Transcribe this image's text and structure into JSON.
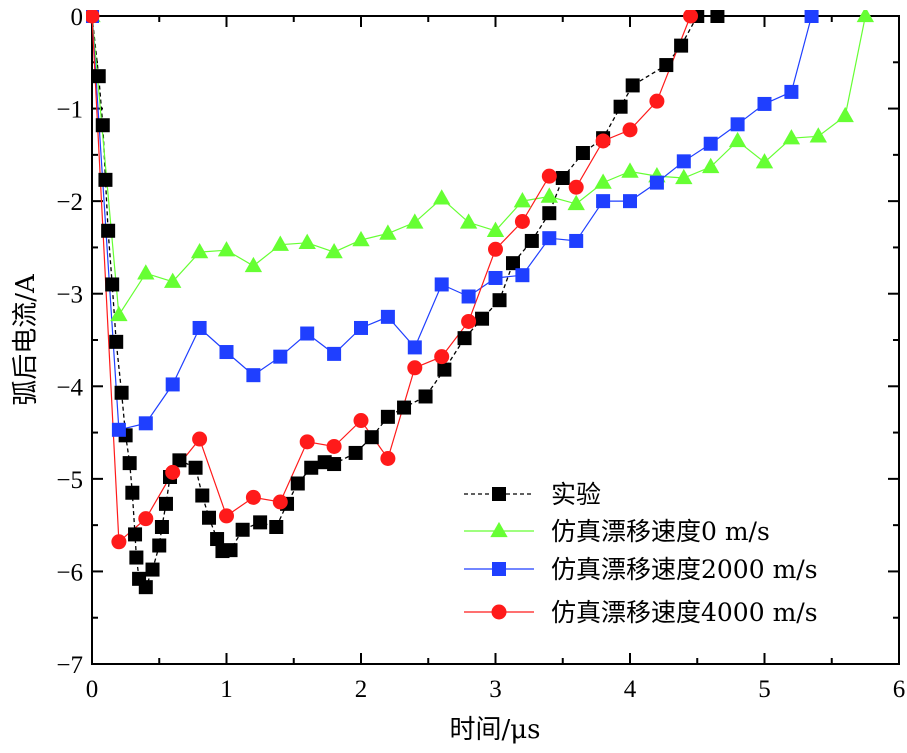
{
  "chart_data": {
    "type": "line",
    "xlabel": "时间/μs",
    "ylabel": "弧后电流/A",
    "xlim": [
      0,
      6
    ],
    "ylim": [
      -7,
      0
    ],
    "x_ticks": [
      "0",
      "1",
      "2",
      "3",
      "4",
      "5",
      "6"
    ],
    "y_ticks": [
      "0",
      "−1",
      "−2",
      "−3",
      "−4",
      "−5",
      "−6",
      "−7"
    ],
    "grid": false,
    "legend_position": "bottom-right",
    "series": [
      {
        "name": "实验",
        "color": "#000000",
        "line_style": "dashed",
        "marker": "square",
        "x": [
          0.0,
          0.05,
          0.08,
          0.1,
          0.12,
          0.15,
          0.18,
          0.22,
          0.25,
          0.28,
          0.3,
          0.32,
          0.33,
          0.35,
          0.4,
          0.45,
          0.5,
          0.52,
          0.55,
          0.58,
          0.65,
          0.77,
          0.82,
          0.87,
          0.93,
          0.97,
          1.03,
          1.12,
          1.25,
          1.37,
          1.45,
          1.53,
          1.63,
          1.73,
          1.8,
          1.96,
          2.08,
          2.2,
          2.32,
          2.48,
          2.62,
          2.77,
          2.9,
          3.03,
          3.13,
          3.27,
          3.4,
          3.5,
          3.65,
          3.8,
          3.93,
          4.02,
          4.27,
          4.38,
          4.5,
          4.65
        ],
        "y": [
          0,
          -0.65,
          -1.18,
          -1.77,
          -2.32,
          -2.9,
          -3.52,
          -4.07,
          -4.53,
          -4.83,
          -5.15,
          -5.6,
          -5.85,
          -6.08,
          -6.17,
          -5.98,
          -5.72,
          -5.52,
          -5.27,
          -4.98,
          -4.8,
          -4.88,
          -5.18,
          -5.42,
          -5.65,
          -5.78,
          -5.77,
          -5.55,
          -5.47,
          -5.52,
          -5.27,
          -5.05,
          -4.88,
          -4.82,
          -4.84,
          -4.72,
          -4.55,
          -4.33,
          -4.23,
          -4.11,
          -3.82,
          -3.48,
          -3.27,
          -3.07,
          -2.67,
          -2.43,
          -2.13,
          -1.75,
          -1.48,
          -1.32,
          -0.98,
          -0.75,
          -0.53,
          -0.32,
          -0.0,
          -0.0
        ]
      },
      {
        "name": "仿真漂移速度0 m/s",
        "color": "#66ff33",
        "line_style": "solid",
        "marker": "triangle",
        "x": [
          0.0,
          0.2,
          0.4,
          0.6,
          0.8,
          1.0,
          1.2,
          1.4,
          1.6,
          1.8,
          2.0,
          2.2,
          2.4,
          2.6,
          2.8,
          3.0,
          3.2,
          3.4,
          3.6,
          3.8,
          4.0,
          4.2,
          4.4,
          4.6,
          4.8,
          5.0,
          5.2,
          5.4,
          5.6,
          5.75
        ],
        "y": [
          0,
          -3.23,
          -2.78,
          -2.87,
          -2.55,
          -2.53,
          -2.7,
          -2.47,
          -2.45,
          -2.55,
          -2.42,
          -2.35,
          -2.23,
          -1.97,
          -2.23,
          -2.32,
          -2.0,
          -1.95,
          -2.03,
          -1.8,
          -1.68,
          -1.73,
          -1.75,
          -1.63,
          -1.35,
          -1.58,
          -1.32,
          -1.3,
          -1.08,
          0
        ]
      },
      {
        "name": "仿真漂移速度2000 m/s",
        "color": "#1f3fff",
        "line_style": "solid",
        "marker": "square",
        "x": [
          0.0,
          0.2,
          0.4,
          0.6,
          0.8,
          1.0,
          1.2,
          1.4,
          1.6,
          1.8,
          2.0,
          2.2,
          2.4,
          2.6,
          2.8,
          3.0,
          3.2,
          3.4,
          3.6,
          3.8,
          4.0,
          4.2,
          4.4,
          4.6,
          4.8,
          5.0,
          5.2,
          5.35
        ],
        "y": [
          0,
          -4.47,
          -4.4,
          -3.98,
          -3.37,
          -3.63,
          -3.88,
          -3.68,
          -3.43,
          -3.65,
          -3.37,
          -3.25,
          -3.58,
          -2.9,
          -3.03,
          -2.83,
          -2.8,
          -2.4,
          -2.43,
          -2.0,
          -2.0,
          -1.8,
          -1.57,
          -1.38,
          -1.17,
          -0.95,
          -0.82,
          0
        ]
      },
      {
        "name": "仿真漂移速度4000 m/s",
        "color": "#ff1a1a",
        "line_style": "solid",
        "marker": "circle",
        "x": [
          0.0,
          0.2,
          0.4,
          0.6,
          0.8,
          1.0,
          1.2,
          1.4,
          1.6,
          1.8,
          2.0,
          2.2,
          2.4,
          2.6,
          2.8,
          3.0,
          3.2,
          3.4,
          3.6,
          3.8,
          4.0,
          4.2,
          4.45
        ],
        "y": [
          0,
          -5.68,
          -5.43,
          -4.93,
          -4.57,
          -5.4,
          -5.2,
          -5.25,
          -4.6,
          -4.65,
          -4.37,
          -4.78,
          -3.8,
          -3.68,
          -3.3,
          -2.52,
          -2.22,
          -1.73,
          -1.85,
          -1.35,
          -1.23,
          -0.92,
          0
        ]
      }
    ]
  }
}
